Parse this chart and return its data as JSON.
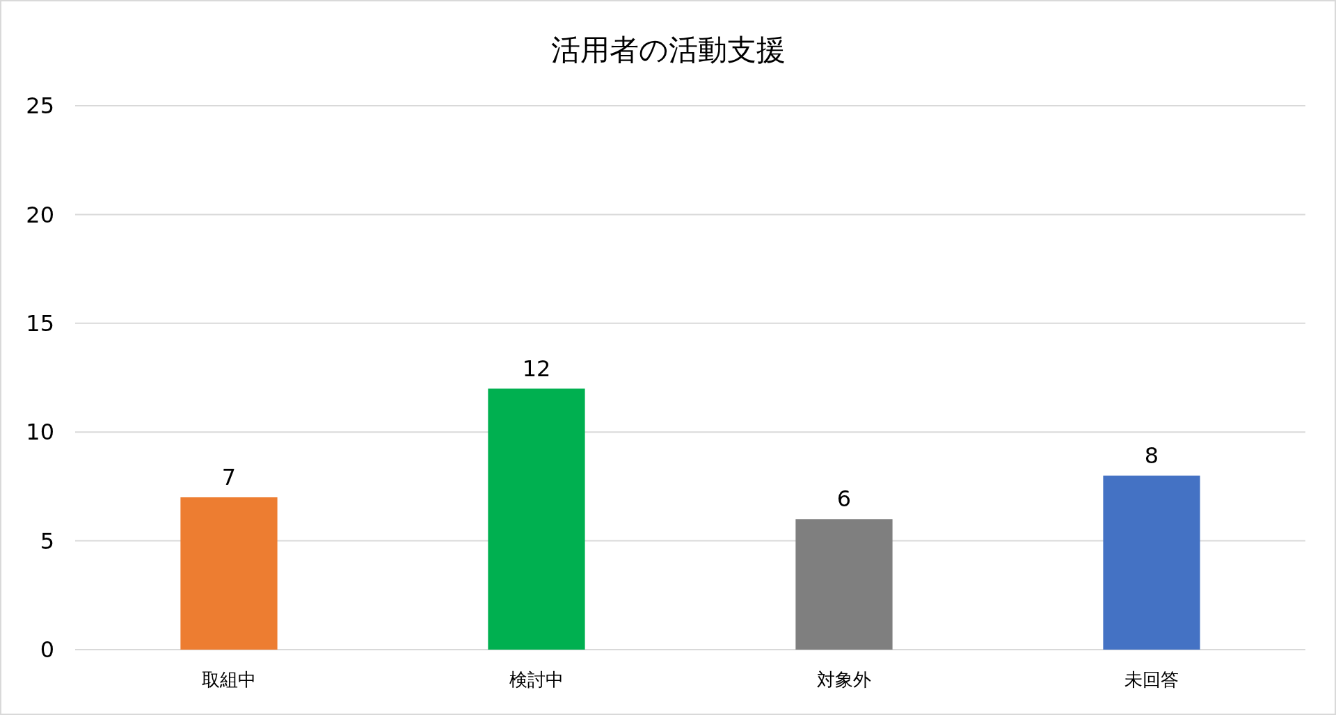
{
  "chart_data": {
    "type": "bar",
    "title": "活用者の活動支援",
    "categories": [
      "取組中",
      "検討中",
      "対象外",
      "未回答"
    ],
    "values": [
      7,
      12,
      6,
      8
    ],
    "colors": [
      "#ed7d31",
      "#00b050",
      "#7f7f7f",
      "#4472c4"
    ],
    "ylim": [
      0,
      25
    ],
    "yticks": [
      0,
      5,
      10,
      15,
      20,
      25
    ],
    "grid": "y",
    "data_labels": true
  }
}
